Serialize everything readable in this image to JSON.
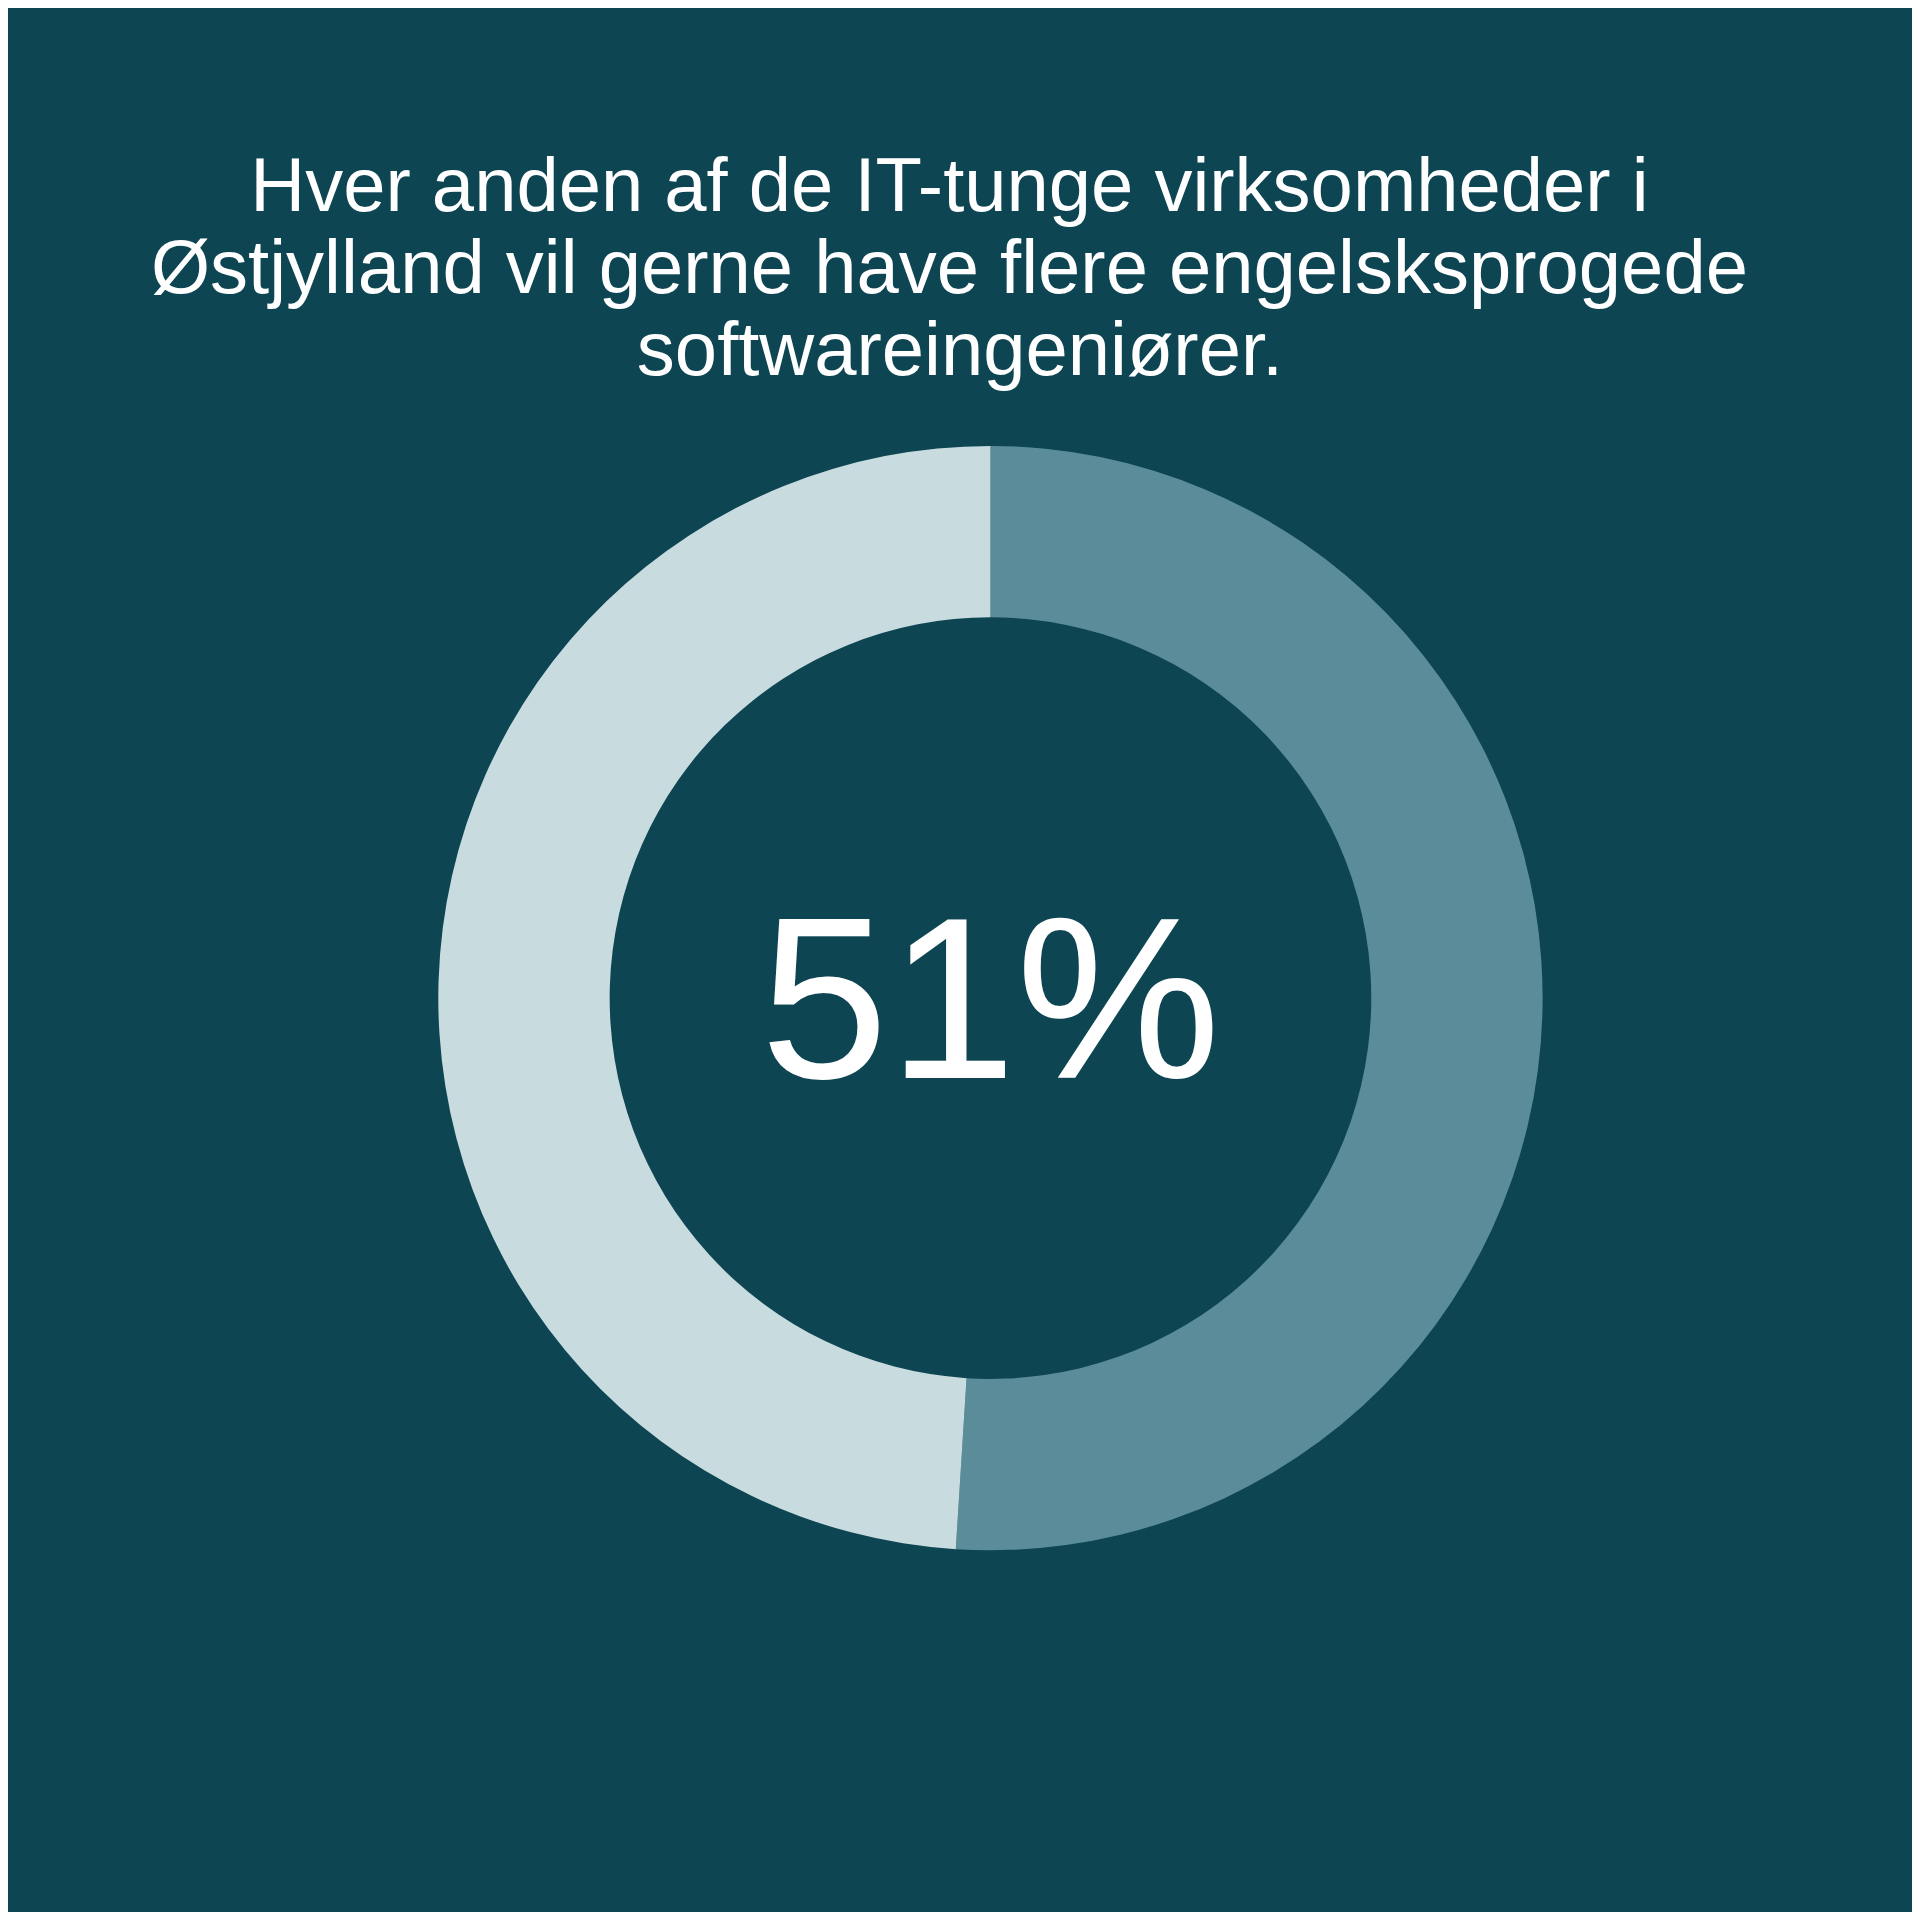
{
  "chart_data": {
    "type": "donut",
    "title": "Hver anden af de IT-tunge virksomheder i Østjylland vil gerne have flere engelsksprogede softwareingeniører.",
    "categories": [
      null,
      null
    ],
    "values": [
      51,
      49
    ],
    "colors": [
      "#5a8d99",
      "#c8dce0"
    ],
    "value_labels": [
      "51%",
      null
    ]
  }
}
